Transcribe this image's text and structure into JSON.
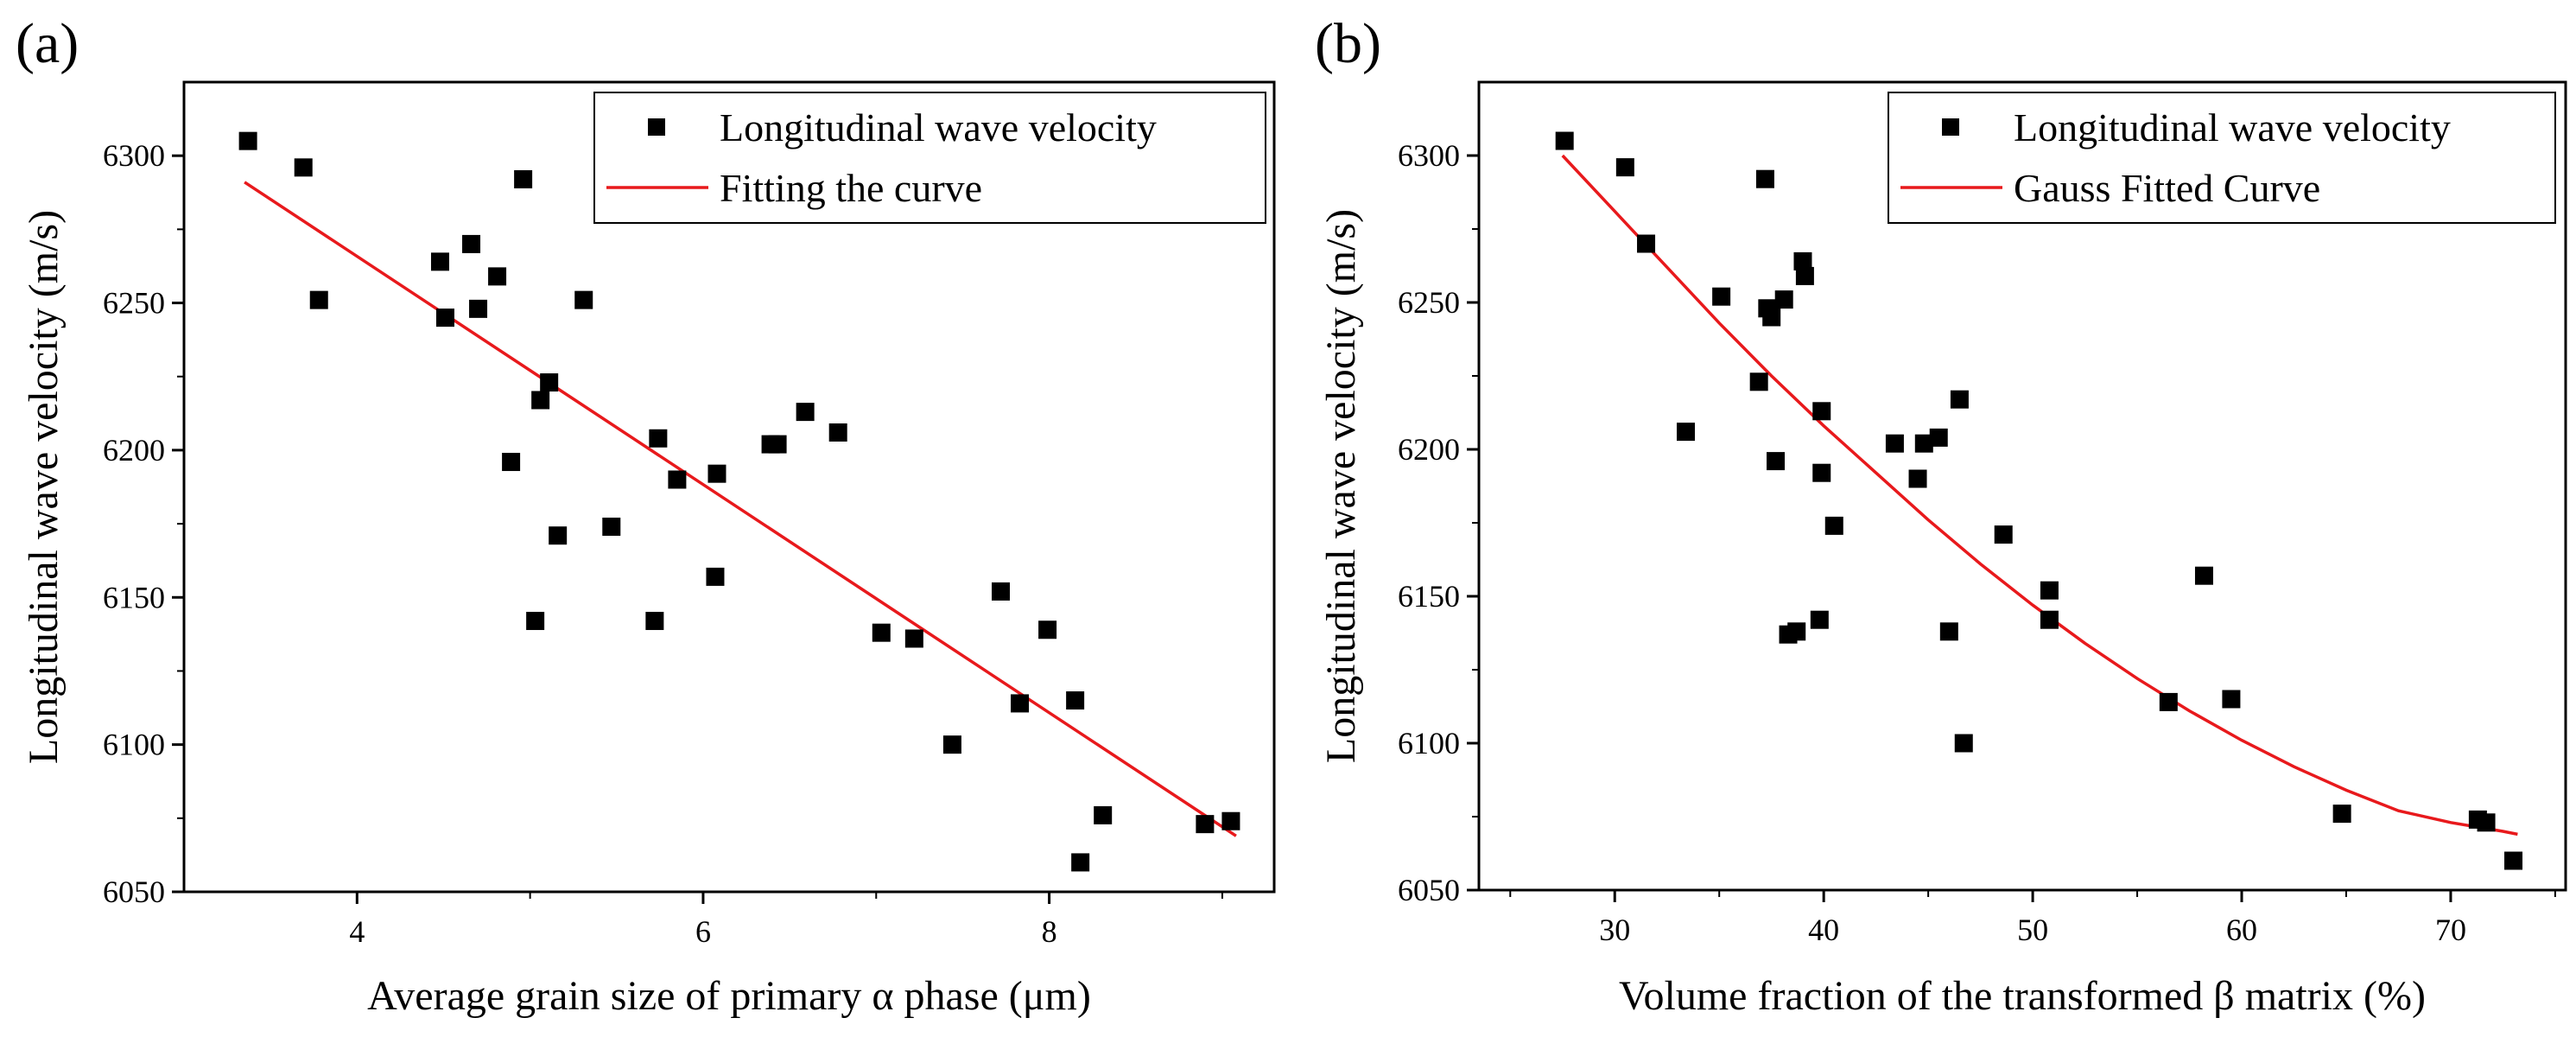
{
  "chart_data": [
    {
      "panel_label": "(a)",
      "type": "scatter",
      "xlabel": "Average grain size of primary α phase (μm)",
      "ylabel": "Longitudinal wave velocity (m/s)",
      "xlim": [
        3.0,
        9.3
      ],
      "ylim": [
        6050,
        6325
      ],
      "xticks": [
        4,
        6,
        8
      ],
      "xtick_labels": [
        "4",
        "6",
        "8"
      ],
      "yticks": [
        6050,
        6100,
        6150,
        6200,
        6250,
        6300
      ],
      "ytick_labels": [
        "6050",
        "6100",
        "6150",
        "6200",
        "6250",
        "6300"
      ],
      "legend": {
        "position": "top-right",
        "entries": [
          "Longitudinal wave velocity",
          "Fitting the curve"
        ]
      },
      "series": [
        {
          "name": "Longitudinal wave velocity",
          "kind": "scatter",
          "points": [
            [
              3.37,
              6305
            ],
            [
              3.69,
              6296
            ],
            [
              3.78,
              6251
            ],
            [
              4.48,
              6264
            ],
            [
              4.51,
              6245
            ],
            [
              4.66,
              6270
            ],
            [
              4.7,
              6248
            ],
            [
              4.81,
              6259
            ],
            [
              4.89,
              6196
            ],
            [
              4.96,
              6292
            ],
            [
              5.03,
              6142
            ],
            [
              5.06,
              6217
            ],
            [
              5.11,
              6223
            ],
            [
              5.16,
              6171
            ],
            [
              5.31,
              6251
            ],
            [
              5.47,
              6174
            ],
            [
              5.72,
              6142
            ],
            [
              5.74,
              6204
            ],
            [
              5.85,
              6190
            ],
            [
              6.07,
              6157
            ],
            [
              6.08,
              6192
            ],
            [
              6.39,
              6202
            ],
            [
              6.43,
              6202
            ],
            [
              6.59,
              6213
            ],
            [
              6.78,
              6206
            ],
            [
              7.03,
              6138
            ],
            [
              7.22,
              6136
            ],
            [
              7.44,
              6100
            ],
            [
              7.72,
              6152
            ],
            [
              7.83,
              6114
            ],
            [
              7.99,
              6139
            ],
            [
              8.15,
              6115
            ],
            [
              8.18,
              6060
            ],
            [
              8.31,
              6076
            ],
            [
              8.9,
              6073
            ],
            [
              9.05,
              6074
            ]
          ]
        },
        {
          "name": "Fitting the curve",
          "kind": "line",
          "color": "#e8191c",
          "x": [
            3.35,
            9.08
          ],
          "y": [
            6291,
            6069
          ]
        }
      ]
    },
    {
      "panel_label": "(b)",
      "type": "scatter",
      "xlabel": "Volume fraction of the transformed β matrix (%)",
      "ylabel": "Longitudinal wave velocity (m/s)",
      "xlim": [
        23.5,
        75.5
      ],
      "ylim": [
        6050,
        6325
      ],
      "xticks": [
        30,
        40,
        50,
        60,
        70
      ],
      "xtick_labels": [
        "30",
        "40",
        "50",
        "60",
        "70"
      ],
      "yticks": [
        6050,
        6100,
        6150,
        6200,
        6250,
        6300
      ],
      "ytick_labels": [
        "6050",
        "6100",
        "6150",
        "6200",
        "6250",
        "6300"
      ],
      "legend": {
        "position": "top-right",
        "entries": [
          "Longitudinal wave velocity",
          "Gauss Fitted Curve"
        ]
      },
      "series": [
        {
          "name": "Longitudinal wave velocity",
          "kind": "scatter",
          "points": [
            [
              27.6,
              6305
            ],
            [
              30.5,
              6296
            ],
            [
              31.5,
              6270
            ],
            [
              33.4,
              6206
            ],
            [
              35.1,
              6252
            ],
            [
              36.9,
              6223
            ],
            [
              37.2,
              6292
            ],
            [
              37.3,
              6248
            ],
            [
              37.5,
              6245
            ],
            [
              37.7,
              6196
            ],
            [
              38.1,
              6251
            ],
            [
              38.3,
              6137
            ],
            [
              38.7,
              6138
            ],
            [
              39.0,
              6264
            ],
            [
              39.1,
              6259
            ],
            [
              39.8,
              6142
            ],
            [
              39.9,
              6192
            ],
            [
              39.9,
              6213
            ],
            [
              40.5,
              6174
            ],
            [
              43.4,
              6202
            ],
            [
              44.5,
              6190
            ],
            [
              44.8,
              6202
            ],
            [
              45.5,
              6204
            ],
            [
              46.0,
              6138
            ],
            [
              46.5,
              6217
            ],
            [
              46.7,
              6100
            ],
            [
              48.6,
              6171
            ],
            [
              50.8,
              6152
            ],
            [
              50.8,
              6142
            ],
            [
              56.5,
              6114
            ],
            [
              58.2,
              6157
            ],
            [
              59.5,
              6115
            ],
            [
              64.8,
              6076
            ],
            [
              71.3,
              6074
            ],
            [
              71.7,
              6073
            ],
            [
              73.0,
              6060
            ]
          ]
        },
        {
          "name": "Gauss Fitted Curve",
          "kind": "line",
          "color": "#e8191c",
          "x": [
            27.5,
            30,
            32.5,
            35,
            37.5,
            40,
            42.5,
            45,
            47.5,
            50,
            52.5,
            55,
            57.5,
            60,
            62.5,
            65,
            67.5,
            70,
            72.5,
            73.2
          ],
          "y": [
            6300,
            6281,
            6262,
            6243,
            6225,
            6208,
            6192,
            6176,
            6161,
            6147,
            6134,
            6122,
            6111,
            6101,
            6092,
            6084,
            6077,
            6073,
            6070,
            6069
          ]
        }
      ]
    }
  ]
}
